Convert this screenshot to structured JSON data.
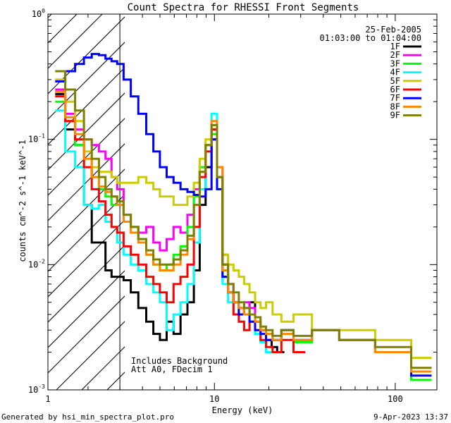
{
  "chart_data": {
    "type": "line",
    "title": "Count Spectra for RHESSI Front Segments",
    "xlabel": "Energy (keV)",
    "ylabel": "counts cm^-2 s^-1 keV^-1",
    "xscale": "log",
    "yscale": "log",
    "xlim": [
      1.2,
      170
    ],
    "ylim": [
      0.001,
      1.0
    ],
    "x_ticks": [
      {
        "value": 1,
        "label": "1"
      },
      {
        "value": 10,
        "label": "10"
      },
      {
        "value": 100,
        "label": "100"
      }
    ],
    "y_ticks": [
      {
        "value": 1.0,
        "base": "10",
        "exp": "0"
      },
      {
        "value": 0.1,
        "base": "10",
        "exp": "-1"
      },
      {
        "value": 0.01,
        "base": "10",
        "exp": "-2"
      },
      {
        "value": 0.001,
        "base": "10",
        "exp": "-3"
      }
    ],
    "date": "25-Feb-2005",
    "time_range": "01:03:00 to 01:04:00",
    "excluded_below_keV": 3.0,
    "annotations": [
      "Includes Background",
      "Att A0, FDecim 1"
    ],
    "footer_left": "Generated by hsi_min_spectra_plot.pro",
    "footer_right": "9-Apr-2023 13:37",
    "series": [
      {
        "name": "1F",
        "color": "#000000",
        "x": [
          1.4,
          1.6,
          1.8,
          2.0,
          2.2,
          2.4,
          2.6,
          2.8,
          3.0,
          3.3,
          3.6,
          4.0,
          4.4,
          4.8,
          5.2,
          5.7,
          6.2,
          6.8,
          7.4,
          8.0,
          8.6,
          9.3,
          10.0,
          10.7,
          11.5,
          12.3,
          13.2,
          14.1,
          15.1,
          16.2,
          17.4,
          18.6,
          20.0,
          21.5,
          23.0
        ],
        "y": [
          0.23,
          0.12,
          0.09,
          0.03,
          0.015,
          0.015,
          0.009,
          0.008,
          0.008,
          0.0075,
          0.006,
          0.0045,
          0.0035,
          0.0028,
          0.0025,
          0.0035,
          0.0028,
          0.004,
          0.005,
          0.009,
          0.03,
          0.06,
          0.1,
          0.05,
          0.008,
          0.006,
          0.005,
          0.0045,
          0.004,
          0.005,
          0.0035,
          0.003,
          0.0025,
          0.0022,
          0.002
        ]
      },
      {
        "name": "2F",
        "color": "#ff00ff",
        "x": [
          1.4,
          1.6,
          1.8,
          2.0,
          2.2,
          2.4,
          2.6,
          2.8,
          3.0,
          3.3,
          3.6,
          4.0,
          4.4,
          4.8,
          5.2,
          5.7,
          6.2,
          6.8,
          7.4,
          8.0,
          8.6,
          9.3,
          10.0,
          10.7,
          11.5,
          12.3,
          13.2,
          14.1,
          15.1,
          16.2,
          17.4,
          18.6,
          20.0
        ],
        "y": [
          0.25,
          0.16,
          0.12,
          0.1,
          0.09,
          0.08,
          0.07,
          0.05,
          0.04,
          0.025,
          0.02,
          0.018,
          0.02,
          0.015,
          0.013,
          0.016,
          0.02,
          0.018,
          0.025,
          0.04,
          0.06,
          0.09,
          0.12,
          0.06,
          0.012,
          0.007,
          0.005,
          0.004,
          0.005,
          0.0045,
          0.0035,
          0.003,
          0.0025
        ]
      },
      {
        "name": "3F",
        "color": "#00ff00",
        "x": [
          1.4,
          1.6,
          1.8,
          2.0,
          2.2,
          2.4,
          2.6,
          2.8,
          3.0,
          3.3,
          3.6,
          4.0,
          4.4,
          4.8,
          5.2,
          5.7,
          6.2,
          6.8,
          7.4,
          8.0,
          8.6,
          9.3,
          10.0,
          10.7,
          11.5,
          12.3,
          13.2,
          14.1,
          15.1,
          16.2,
          17.4,
          18.6,
          20.0,
          22.0,
          25.0,
          30.0,
          40.0,
          60.0,
          100.0,
          150.0
        ],
        "y": [
          0.2,
          0.14,
          0.09,
          0.06,
          0.05,
          0.04,
          0.035,
          0.03,
          0.03,
          0.025,
          0.02,
          0.016,
          0.012,
          0.01,
          0.009,
          0.01,
          0.012,
          0.014,
          0.02,
          0.035,
          0.06,
          0.09,
          0.11,
          0.05,
          0.01,
          0.006,
          0.005,
          0.004,
          0.0045,
          0.004,
          0.0035,
          0.003,
          0.0028,
          0.0025,
          0.003,
          0.0024,
          0.003,
          0.0025,
          0.002,
          0.0012
        ]
      },
      {
        "name": "4F",
        "color": "#00ffff",
        "x": [
          1.4,
          1.6,
          1.8,
          2.0,
          2.2,
          2.4,
          2.6,
          2.8,
          3.0,
          3.3,
          3.6,
          4.0,
          4.4,
          4.8,
          5.2,
          5.7,
          6.2,
          6.8,
          7.4,
          8.0,
          8.6,
          9.3,
          10.0,
          10.7,
          11.5,
          12.3,
          13.2,
          14.1,
          15.1,
          16.2,
          17.4,
          18.6,
          20.0
        ],
        "y": [
          0.17,
          0.08,
          0.06,
          0.03,
          0.028,
          0.03,
          0.022,
          0.02,
          0.015,
          0.012,
          0.01,
          0.009,
          0.007,
          0.006,
          0.005,
          0.003,
          0.004,
          0.005,
          0.007,
          0.015,
          0.04,
          0.08,
          0.16,
          0.05,
          0.007,
          0.005,
          0.004,
          0.0035,
          0.003,
          0.0035,
          0.0028,
          0.0024,
          0.002
        ]
      },
      {
        "name": "5F",
        "color": "#cccc00",
        "x": [
          1.4,
          1.6,
          1.8,
          2.0,
          2.2,
          2.4,
          2.6,
          2.8,
          3.0,
          3.3,
          3.6,
          4.0,
          4.4,
          4.8,
          5.2,
          5.7,
          6.2,
          6.8,
          7.4,
          8.0,
          8.6,
          9.3,
          10.0,
          10.7,
          11.5,
          12.3,
          13.2,
          14.1,
          15.1,
          16.2,
          17.4,
          18.6,
          20.0,
          22.0,
          25.0,
          30.0,
          40.0,
          60.0,
          100.0,
          150.0
        ],
        "y": [
          0.3,
          0.2,
          0.14,
          0.08,
          0.06,
          0.055,
          0.055,
          0.05,
          0.045,
          0.045,
          0.045,
          0.05,
          0.045,
          0.04,
          0.035,
          0.035,
          0.03,
          0.03,
          0.035,
          0.045,
          0.07,
          0.1,
          0.13,
          0.05,
          0.012,
          0.01,
          0.009,
          0.008,
          0.007,
          0.006,
          0.005,
          0.0045,
          0.005,
          0.004,
          0.0035,
          0.004,
          0.003,
          0.003,
          0.0025,
          0.0018
        ]
      },
      {
        "name": "6F",
        "color": "#ff0000",
        "x": [
          1.4,
          1.6,
          1.8,
          2.0,
          2.2,
          2.4,
          2.6,
          2.8,
          3.0,
          3.3,
          3.6,
          4.0,
          4.4,
          4.8,
          5.2,
          5.7,
          6.2,
          6.8,
          7.4,
          8.0,
          8.6,
          9.3,
          10.0,
          10.7,
          11.5,
          12.3,
          13.2,
          14.1,
          15.1,
          16.2,
          17.4,
          18.6,
          20.0,
          22.0,
          25.0,
          30.0
        ],
        "y": [
          0.22,
          0.14,
          0.1,
          0.06,
          0.04,
          0.032,
          0.025,
          0.02,
          0.018,
          0.014,
          0.012,
          0.01,
          0.008,
          0.007,
          0.006,
          0.005,
          0.007,
          0.008,
          0.01,
          0.02,
          0.05,
          0.08,
          0.12,
          0.05,
          0.01,
          0.006,
          0.004,
          0.0035,
          0.003,
          0.0035,
          0.003,
          0.0025,
          0.0022,
          0.002,
          0.0025,
          0.002
        ]
      },
      {
        "name": "7F",
        "color": "#0000ff",
        "x": [
          1.4,
          1.6,
          1.8,
          2.0,
          2.2,
          2.4,
          2.6,
          2.8,
          3.0,
          3.3,
          3.6,
          4.0,
          4.4,
          4.8,
          5.2,
          5.7,
          6.2,
          6.8,
          7.4,
          8.0,
          8.6,
          9.3,
          10.0,
          10.7,
          11.5,
          12.3,
          13.2,
          14.1,
          15.1,
          16.2,
          17.4,
          18.6,
          20.0,
          22.0,
          25.0,
          30.0,
          40.0,
          60.0,
          100.0,
          150.0
        ],
        "y": [
          0.29,
          0.35,
          0.4,
          0.45,
          0.48,
          0.47,
          0.44,
          0.42,
          0.4,
          0.3,
          0.22,
          0.16,
          0.11,
          0.08,
          0.06,
          0.05,
          0.045,
          0.04,
          0.038,
          0.036,
          0.035,
          0.04,
          0.1,
          0.04,
          0.008,
          0.006,
          0.005,
          0.004,
          0.004,
          0.0035,
          0.003,
          0.0028,
          0.0025,
          0.0025,
          0.003,
          0.0025,
          0.003,
          0.0025,
          0.002,
          0.0013
        ]
      },
      {
        "name": "8F",
        "color": "#ff8800",
        "x": [
          1.4,
          1.6,
          1.8,
          2.0,
          2.2,
          2.4,
          2.6,
          2.8,
          3.0,
          3.3,
          3.6,
          4.0,
          4.4,
          4.8,
          5.2,
          5.7,
          6.2,
          6.8,
          7.4,
          8.0,
          8.6,
          9.3,
          10.0,
          10.7,
          11.5,
          12.3,
          13.2,
          14.1,
          15.1,
          16.2,
          17.4,
          18.6,
          20.0,
          22.0,
          25.0,
          30.0,
          40.0,
          60.0,
          100.0,
          150.0
        ],
        "y": [
          0.24,
          0.15,
          0.11,
          0.07,
          0.05,
          0.042,
          0.038,
          0.035,
          0.03,
          0.022,
          0.018,
          0.015,
          0.012,
          0.01,
          0.009,
          0.009,
          0.01,
          0.012,
          0.016,
          0.03,
          0.055,
          0.09,
          0.14,
          0.06,
          0.009,
          0.006,
          0.005,
          0.0045,
          0.004,
          0.004,
          0.0035,
          0.003,
          0.0028,
          0.0025,
          0.0028,
          0.0025,
          0.003,
          0.0025,
          0.002,
          0.0014
        ]
      },
      {
        "name": "9F",
        "color": "#808000",
        "x": [
          1.4,
          1.6,
          1.8,
          2.0,
          2.2,
          2.4,
          2.6,
          2.8,
          3.0,
          3.3,
          3.6,
          4.0,
          4.4,
          4.8,
          5.2,
          5.7,
          6.2,
          6.8,
          7.4,
          8.0,
          8.6,
          9.3,
          10.0,
          10.7,
          11.5,
          12.3,
          13.2,
          14.1,
          15.1,
          16.2,
          17.4,
          18.6,
          20.0,
          22.0,
          25.0,
          30.0,
          40.0,
          60.0,
          100.0,
          150.0
        ],
        "y": [
          0.35,
          0.25,
          0.17,
          0.1,
          0.07,
          0.05,
          0.04,
          0.035,
          0.032,
          0.025,
          0.02,
          0.016,
          0.013,
          0.011,
          0.01,
          0.01,
          0.011,
          0.013,
          0.017,
          0.03,
          0.055,
          0.09,
          0.13,
          0.05,
          0.01,
          0.007,
          0.006,
          0.005,
          0.0045,
          0.004,
          0.0038,
          0.0032,
          0.003,
          0.0027,
          0.003,
          0.0027,
          0.003,
          0.0025,
          0.0022,
          0.0015
        ]
      }
    ]
  }
}
